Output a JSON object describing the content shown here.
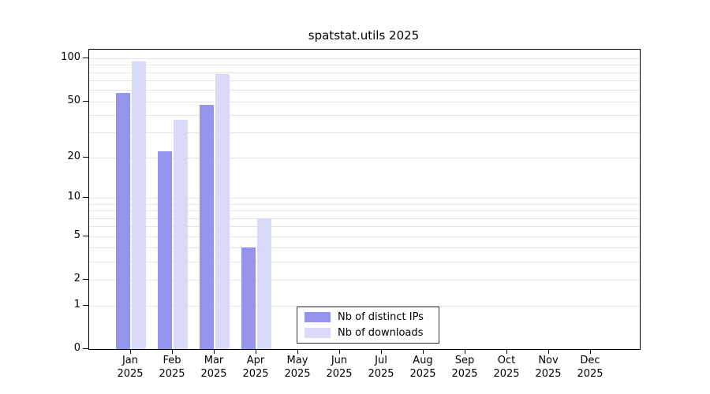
{
  "chart_data": {
    "type": "bar",
    "title": "spatstat.utils 2025",
    "categories": [
      "Jan 2025",
      "Feb 2025",
      "Mar 2025",
      "Apr 2025",
      "May 2025",
      "Jun 2025",
      "Jul 2025",
      "Aug 2025",
      "Sep 2025",
      "Oct 2025",
      "Nov 2025",
      "Dec 2025"
    ],
    "series": [
      {
        "name": "Nb of distinct IPs",
        "color": "#9494ec",
        "values": [
          57,
          22,
          47,
          4,
          0,
          0,
          0,
          0,
          0,
          0,
          0,
          0
        ]
      },
      {
        "name": "Nb of downloads",
        "color": "#d9d9f8",
        "values": [
          95,
          37,
          78,
          7,
          0,
          0,
          0,
          0,
          0,
          0,
          0,
          0
        ]
      }
    ],
    "y_ticks": [
      0,
      1,
      2,
      5,
      10,
      20,
      50,
      100
    ],
    "y_scale": "log1p",
    "ylim": [
      0,
      100
    ],
    "gridline_values": [
      1,
      2,
      3,
      4,
      5,
      6,
      7,
      8,
      9,
      10,
      20,
      30,
      40,
      50,
      60,
      70,
      80,
      90,
      100
    ],
    "grid_color": "#e4e4e4",
    "legend_position": "bottom-center-inside"
  }
}
